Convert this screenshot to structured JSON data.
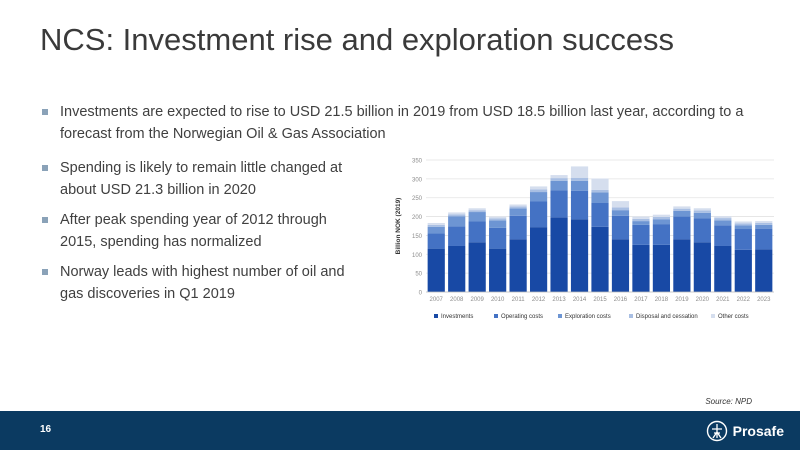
{
  "slide": {
    "title": "NCS: Investment rise and exploration success",
    "bullets": [
      "Investments are expected to rise to USD 21.5 billion in 2019 from USD 18.5 billion last year, according to a forecast from the Norwegian Oil & Gas Association",
      "Spending is likely to remain little changed at about USD 21.3 billion in 2020",
      "After peak spending year of 2012 through 2015, spending has normalized",
      "Norway leads with highest number of oil and gas discoveries in Q1 2019"
    ],
    "source": "Source: NPD",
    "page_number": "16",
    "brand": "Prosafe",
    "colors": {
      "footer": "#0b3a61",
      "bullet": "#8aa2b8"
    }
  },
  "chart_data": {
    "type": "bar",
    "stacked": true,
    "categories": [
      "2007",
      "2008",
      "2009",
      "2010",
      "2011",
      "2012",
      "2013",
      "2014",
      "2015",
      "2016",
      "2017",
      "2018",
      "2019",
      "2020",
      "2021",
      "2022",
      "2023"
    ],
    "series": [
      {
        "name": "Investments",
        "color": "#1849a5",
        "values": [
          115,
          122,
          132,
          115,
          140,
          172,
          198,
          193,
          173,
          140,
          125,
          125,
          140,
          132,
          122,
          112,
          113
        ]
      },
      {
        "name": "Operating costs",
        "color": "#4472c4",
        "values": [
          40,
          52,
          55,
          55,
          62,
          68,
          72,
          75,
          63,
          62,
          53,
          55,
          60,
          63,
          55,
          55,
          55
        ]
      },
      {
        "name": "Exploration costs",
        "color": "#6d95d3",
        "values": [
          18,
          27,
          25,
          20,
          20,
          25,
          25,
          27,
          28,
          15,
          10,
          13,
          15,
          15,
          13,
          10,
          10
        ]
      },
      {
        "name": "Disposal and cessation",
        "color": "#a9bfe3",
        "values": [
          5,
          5,
          5,
          5,
          5,
          7,
          7,
          8,
          7,
          7,
          6,
          6,
          6,
          6,
          6,
          5,
          5
        ]
      },
      {
        "name": "Other costs",
        "color": "#d5deee",
        "values": [
          5,
          5,
          5,
          5,
          5,
          8,
          8,
          30,
          30,
          17,
          6,
          6,
          6,
          6,
          5,
          5,
          5
        ]
      }
    ],
    "ylabel": "Billion NOK (2019)",
    "ylim": [
      0,
      350
    ],
    "yticks": [
      "0",
      "50",
      "100",
      "150",
      "200",
      "250",
      "300",
      "350"
    ],
    "grid": true,
    "legend": "bottom"
  }
}
